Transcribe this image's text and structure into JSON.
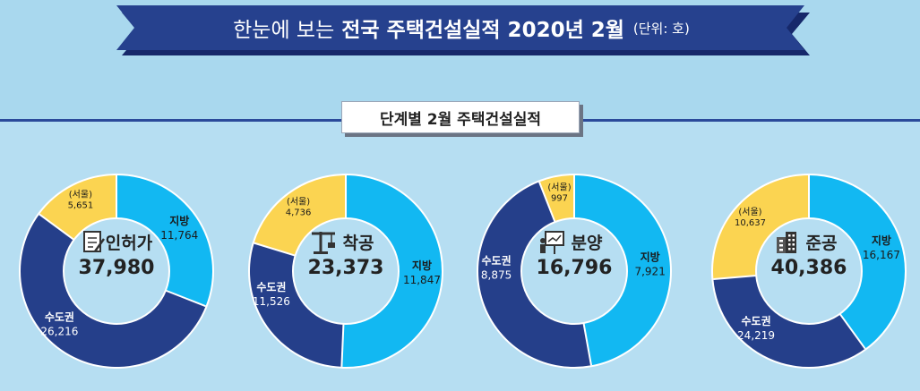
{
  "header": {
    "title_light": "한눈에 보는",
    "title_bold": "전국 주택건설실적 2020년 2월",
    "unit": "(단위: 호)"
  },
  "subtitle": "단계별 2월 주택건설실적",
  "colors": {
    "metro": "#253f8a",
    "local": "#12b8f2",
    "seoul": "#fbd451",
    "center": "#b6def2"
  },
  "chart_data": [
    {
      "type": "pie",
      "title": "인허가",
      "total": "37,980",
      "icon": "permit-document-icon",
      "segments": [
        {
          "name": "지방",
          "value": 11764,
          "label": "11,764"
        },
        {
          "name": "수도권",
          "value": 26216,
          "label": "26,216"
        },
        {
          "name": "(서울)",
          "value": 5651,
          "label": "5,651"
        }
      ]
    },
    {
      "type": "pie",
      "title": "착공",
      "total": "23,373",
      "icon": "crane-icon",
      "segments": [
        {
          "name": "지방",
          "value": 11847,
          "label": "11,847"
        },
        {
          "name": "수도권",
          "value": 11526,
          "label": "11,526"
        },
        {
          "name": "(서울)",
          "value": 4736,
          "label": "4,736"
        }
      ]
    },
    {
      "type": "pie",
      "title": "분양",
      "total": "16,796",
      "icon": "presentation-icon",
      "segments": [
        {
          "name": "지방",
          "value": 7921,
          "label": "7,921"
        },
        {
          "name": "수도권",
          "value": 8875,
          "label": "8,875"
        },
        {
          "name": "(서울)",
          "value": 997,
          "label": "997"
        }
      ]
    },
    {
      "type": "pie",
      "title": "준공",
      "total": "40,386",
      "icon": "buildings-icon",
      "segments": [
        {
          "name": "지방",
          "value": 16167,
          "label": "16,167"
        },
        {
          "name": "수도권",
          "value": 24219,
          "label": "24,219"
        },
        {
          "name": "(서울)",
          "value": 10637,
          "label": "10,637"
        }
      ]
    }
  ]
}
